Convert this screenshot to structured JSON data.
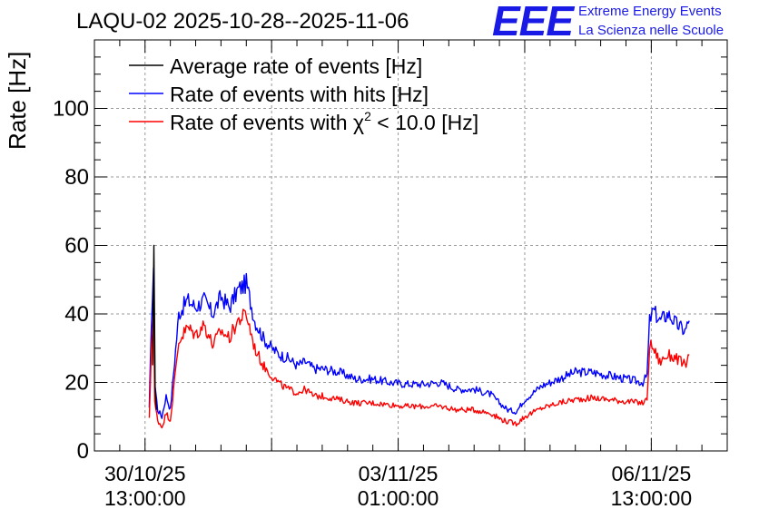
{
  "header": {
    "title": "LAQU-02 2025-10-28--2025-11-06",
    "logo_text": "EEE",
    "logo_line1": "Extreme Energy Events",
    "logo_line2": "La Scienza nelle Scuole"
  },
  "chart_data": {
    "type": "line",
    "title": "LAQU-02 2025-10-28--2025-11-06",
    "xlabel": "",
    "ylabel": "Rate [Hz]",
    "x_unit": "hours since 30/10/25 13:00:00",
    "xlim": [
      -12,
      138
    ],
    "ylim": [
      0,
      120
    ],
    "y_ticks": [
      0,
      20,
      40,
      60,
      80,
      100
    ],
    "x_ticks": [
      {
        "x": 0,
        "line1": "30/10/25",
        "line2": "13:00:00"
      },
      {
        "x": 60,
        "line1": "03/11/25",
        "line2": "01:00:00"
      },
      {
        "x": 120,
        "line1": "06/11/25",
        "line2": "13:00:00"
      }
    ],
    "grid": true,
    "legend_position": "top-left",
    "legend": [
      {
        "label_main": "Average rate of events [Hz]",
        "sup": "",
        "label_tail": "",
        "color": "#000000"
      },
      {
        "label_main": "Rate of events with hits [Hz]",
        "sup": "",
        "label_tail": "",
        "color": "#0000ff"
      },
      {
        "label_main": "Rate of events with χ",
        "sup": "2",
        "label_tail": " < 10.0 [Hz]",
        "color": "#ff0000"
      }
    ],
    "series": [
      {
        "name": "Rate of events with hits [Hz]",
        "color": "#0000ff",
        "x": [
          1.0,
          1.5,
          2.0,
          2.3,
          3.0,
          4.0,
          5.0,
          6.0,
          8.0,
          10.0,
          12.0,
          14.0,
          16.0,
          18.0,
          20.0,
          22.0,
          24.0,
          26.0,
          28.0,
          30.0,
          32.0,
          34.0,
          36.0,
          38.0,
          40.0,
          42.0,
          46.0,
          50.0,
          54.0,
          58.0,
          62.0,
          66.0,
          70.0,
          74.0,
          78.0,
          82.0,
          84.0,
          86.0,
          88.0,
          90.0,
          94.0,
          98.0,
          102.0,
          106.0,
          110.0,
          114.0,
          118.0,
          119.0,
          119.6,
          120.5,
          122.0,
          124.0,
          126.0,
          128.0,
          129.0
        ],
        "y": [
          12.0,
          38.0,
          51.0,
          20.0,
          12.0,
          10.0,
          16.0,
          12.0,
          40.0,
          44.0,
          42.0,
          44.0,
          40.0,
          45.0,
          42.0,
          47.0,
          49.0,
          38.0,
          33.0,
          30.0,
          28.0,
          27.0,
          25.0,
          26.0,
          24.0,
          24.0,
          23.0,
          21.0,
          21.0,
          20.0,
          19.5,
          19.5,
          20.0,
          18.0,
          18.0,
          16.5,
          14.0,
          12.0,
          11.5,
          15.0,
          19.0,
          21.0,
          23.0,
          23.0,
          22.0,
          21.0,
          20.0,
          22.0,
          38.0,
          41.0,
          38.0,
          40.0,
          37.0,
          35.0,
          38.0
        ]
      },
      {
        "name": "Rate of events with χ2 < 10.0 [Hz]",
        "color": "#ff0000",
        "x": [
          1.0,
          1.5,
          2.0,
          2.3,
          3.0,
          4.0,
          5.0,
          6.0,
          8.0,
          10.0,
          12.0,
          14.0,
          16.0,
          18.0,
          20.0,
          22.0,
          24.0,
          26.0,
          28.0,
          30.0,
          32.0,
          34.0,
          36.0,
          38.0,
          40.0,
          42.0,
          46.0,
          50.0,
          54.0,
          58.0,
          62.0,
          66.0,
          70.0,
          74.0,
          78.0,
          82.0,
          84.0,
          86.0,
          88.0,
          90.0,
          94.0,
          98.0,
          102.0,
          106.0,
          110.0,
          114.0,
          118.0,
          119.0,
          119.6,
          120.5,
          122.0,
          124.0,
          126.0,
          128.0,
          129.0
        ],
        "y": [
          9.0,
          30.0,
          42.0,
          14.0,
          9.0,
          7.0,
          11.0,
          9.0,
          32.0,
          36.0,
          34.0,
          37.0,
          31.0,
          35.0,
          33.0,
          38.0,
          40.0,
          30.0,
          25.0,
          22.0,
          19.5,
          18.0,
          17.0,
          18.0,
          16.0,
          16.0,
          15.0,
          14.0,
          14.0,
          13.5,
          13.0,
          13.0,
          13.0,
          12.0,
          12.0,
          11.0,
          9.5,
          8.5,
          8.0,
          10.0,
          12.5,
          14.0,
          15.0,
          15.5,
          15.0,
          14.5,
          14.0,
          15.0,
          31.0,
          30.0,
          26.0,
          28.0,
          27.0,
          25.0,
          28.0
        ]
      },
      {
        "name": "Average rate of events [Hz]",
        "color": "#000000",
        "x": [
          1.8,
          2.1,
          2.4,
          2.7
        ],
        "y": [
          25.0,
          60.0,
          18.0,
          12.0
        ]
      }
    ]
  }
}
